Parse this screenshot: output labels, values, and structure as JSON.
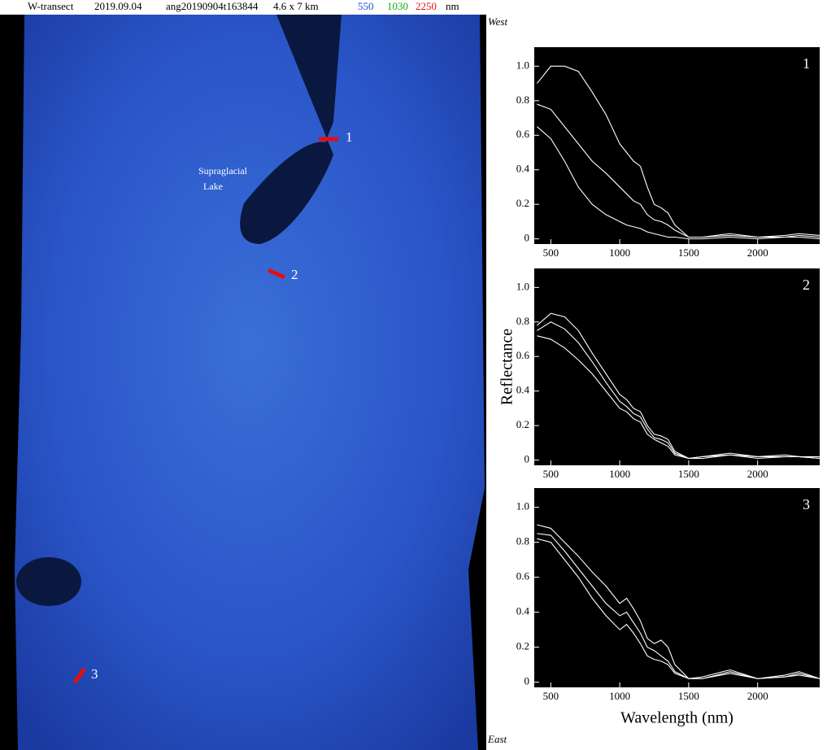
{
  "header": {
    "transect": "W-transect",
    "date": "2019.09.04",
    "scene": "ang20190904t163844",
    "size": "4.6 x 7 km",
    "band_blue": "550",
    "band_green": "1030",
    "band_red": "2250",
    "unit": "nm"
  },
  "image": {
    "west": "West",
    "east": "East",
    "lake_label_1": "Supraglacial",
    "lake_label_2": "Lake",
    "site_1": "1",
    "site_2": "2",
    "site_3": "3"
  },
  "chart_data": [
    {
      "type": "line",
      "title": "1",
      "x": [
        400,
        500,
        600,
        700,
        800,
        900,
        1000,
        1050,
        1100,
        1150,
        1200,
        1250,
        1300,
        1350,
        1400,
        1500,
        1600,
        1800,
        2000,
        2200,
        2300,
        2450
      ],
      "series": [
        {
          "color": "#ffffff",
          "values": [
            0.9,
            1.0,
            1.0,
            0.97,
            0.85,
            0.72,
            0.55,
            0.5,
            0.45,
            0.42,
            0.3,
            0.2,
            0.18,
            0.15,
            0.08,
            0.01,
            0.01,
            0.03,
            0.01,
            0.02,
            0.03,
            0.02
          ]
        },
        {
          "color": "#ffffff",
          "values": [
            0.78,
            0.75,
            0.65,
            0.55,
            0.45,
            0.38,
            0.3,
            0.26,
            0.22,
            0.2,
            0.14,
            0.11,
            0.1,
            0.08,
            0.05,
            0.01,
            0.01,
            0.02,
            0.01,
            0.01,
            0.02,
            0.01
          ]
        },
        {
          "color": "#ffffff",
          "values": [
            0.65,
            0.58,
            0.45,
            0.3,
            0.2,
            0.14,
            0.1,
            0.08,
            0.07,
            0.06,
            0.04,
            0.03,
            0.02,
            0.01,
            0.01,
            0,
            0,
            0.01,
            0,
            0.01,
            0.01,
            0
          ]
        }
      ],
      "xlim": [
        380,
        2450
      ],
      "ylim": [
        -0.03,
        1.11
      ],
      "xticks": [
        500,
        1000,
        1500,
        2000
      ],
      "yticks": [
        0,
        0.2,
        0.4,
        0.6,
        0.8,
        {
          "value": 1,
          "label": "1.0"
        }
      ]
    },
    {
      "type": "line",
      "title": "2",
      "ylabel": "Reflectance",
      "x": [
        400,
        500,
        600,
        700,
        800,
        900,
        1000,
        1050,
        1100,
        1150,
        1200,
        1250,
        1300,
        1350,
        1400,
        1500,
        1600,
        1800,
        2000,
        2200,
        2300,
        2450
      ],
      "series": [
        {
          "color": "#ffffff",
          "values": [
            0.78,
            0.85,
            0.83,
            0.75,
            0.62,
            0.5,
            0.38,
            0.35,
            0.3,
            0.28,
            0.2,
            0.15,
            0.14,
            0.12,
            0.05,
            0.01,
            0.02,
            0.04,
            0.02,
            0.03,
            0.02,
            0.02
          ]
        },
        {
          "color": "#ffffff",
          "values": [
            0.75,
            0.8,
            0.76,
            0.68,
            0.57,
            0.45,
            0.34,
            0.31,
            0.27,
            0.25,
            0.18,
            0.13,
            0.12,
            0.1,
            0.04,
            0.01,
            0.02,
            0.03,
            0.02,
            0.02,
            0.02,
            0.01
          ]
        },
        {
          "color": "#ffffff",
          "values": [
            0.72,
            0.7,
            0.65,
            0.58,
            0.5,
            0.4,
            0.3,
            0.28,
            0.24,
            0.22,
            0.15,
            0.12,
            0.1,
            0.08,
            0.03,
            0.01,
            0.01,
            0.03,
            0.01,
            0.02,
            0.02,
            0.01
          ]
        }
      ],
      "xlim": [
        380,
        2450
      ],
      "ylim": [
        -0.03,
        1.11
      ],
      "xticks": [
        500,
        1000,
        1500,
        2000
      ],
      "yticks": [
        0,
        0.2,
        0.4,
        0.6,
        0.8,
        {
          "value": 1,
          "label": "1.0"
        }
      ]
    },
    {
      "type": "line",
      "title": "3",
      "xlabel": "Wavelength (nm)",
      "x": [
        400,
        500,
        600,
        700,
        800,
        900,
        1000,
        1050,
        1100,
        1150,
        1200,
        1250,
        1300,
        1350,
        1400,
        1500,
        1600,
        1800,
        2000,
        2200,
        2300,
        2450
      ],
      "series": [
        {
          "color": "#ffffff",
          "values": [
            0.9,
            0.88,
            0.8,
            0.72,
            0.63,
            0.55,
            0.45,
            0.48,
            0.42,
            0.35,
            0.25,
            0.22,
            0.24,
            0.2,
            0.1,
            0.02,
            0.03,
            0.07,
            0.02,
            0.04,
            0.06,
            0.02
          ]
        },
        {
          "color": "#ffffff",
          "values": [
            0.85,
            0.84,
            0.75,
            0.65,
            0.55,
            0.45,
            0.38,
            0.4,
            0.34,
            0.28,
            0.2,
            0.18,
            0.15,
            0.12,
            0.06,
            0.02,
            0.02,
            0.06,
            0.02,
            0.03,
            0.05,
            0.02
          ]
        },
        {
          "color": "#ffffff",
          "values": [
            0.82,
            0.8,
            0.7,
            0.6,
            0.48,
            0.38,
            0.3,
            0.33,
            0.28,
            0.22,
            0.15,
            0.13,
            0.12,
            0.1,
            0.05,
            0.02,
            0.02,
            0.05,
            0.02,
            0.03,
            0.04,
            0.02
          ]
        }
      ],
      "xlim": [
        380,
        2450
      ],
      "ylim": [
        -0.03,
        1.11
      ],
      "xticks": [
        500,
        1000,
        1500,
        2000
      ],
      "yticks": [
        0,
        0.2,
        0.4,
        0.6,
        0.8,
        {
          "value": 1,
          "label": "1.0"
        }
      ]
    }
  ]
}
